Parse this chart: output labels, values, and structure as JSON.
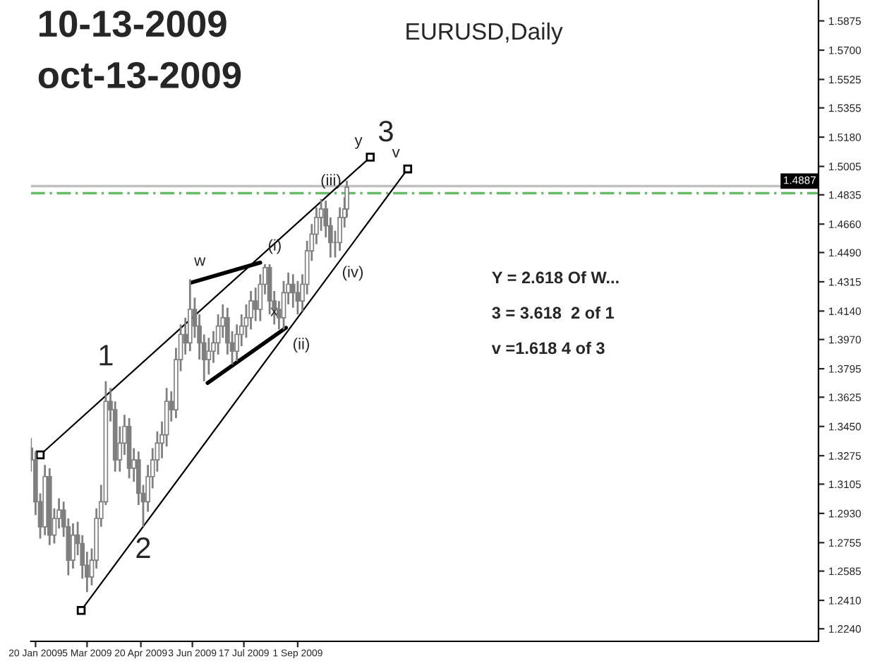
{
  "chart_data": {
    "type": "candlestick",
    "title": "10-13-2009",
    "subtitle": "oct-13-2009",
    "color": "#7f7f7f",
    "x": [
      "2009-01-16",
      "2009-01-20",
      "2009-01-24",
      "2009-01-28",
      "2009-02-01",
      "2009-02-05",
      "2009-02-09",
      "2009-02-13",
      "2009-02-17",
      "2009-02-21",
      "2009-02-25",
      "2009-03-01",
      "2009-03-05",
      "2009-03-09",
      "2009-03-13",
      "2009-03-17",
      "2009-03-21",
      "2009-03-25",
      "2009-03-29",
      "2009-04-02",
      "2009-04-06",
      "2009-04-10",
      "2009-04-14",
      "2009-04-18",
      "2009-04-22",
      "2009-04-26",
      "2009-04-30",
      "2009-05-04",
      "2009-05-08",
      "2009-05-12",
      "2009-05-16",
      "2009-05-20",
      "2009-05-24",
      "2009-05-28",
      "2009-06-01",
      "2009-06-05",
      "2009-06-09",
      "2009-06-13",
      "2009-06-17",
      "2009-06-21",
      "2009-06-25",
      "2009-06-29",
      "2009-07-03",
      "2009-07-07",
      "2009-07-11",
      "2009-07-15",
      "2009-07-19",
      "2009-07-23",
      "2009-07-27",
      "2009-07-31",
      "2009-08-04",
      "2009-08-08",
      "2009-08-12",
      "2009-08-16",
      "2009-08-20",
      "2009-08-24",
      "2009-08-28",
      "2009-09-01",
      "2009-09-05",
      "2009-09-09",
      "2009-09-13",
      "2009-09-17",
      "2009-09-21",
      "2009-09-25",
      "2009-09-29",
      "2009-10-03",
      "2009-10-07",
      "2009-10-11",
      "2009-10-13"
    ],
    "ohlc": [
      [
        1.332,
        1.338,
        1.318,
        1.325
      ],
      [
        1.325,
        1.33,
        1.292,
        1.3
      ],
      [
        1.3,
        1.305,
        1.278,
        1.285
      ],
      [
        1.285,
        1.322,
        1.28,
        1.315
      ],
      [
        1.315,
        1.32,
        1.274,
        1.28
      ],
      [
        1.28,
        1.296,
        1.275,
        1.29
      ],
      [
        1.29,
        1.302,
        1.284,
        1.295
      ],
      [
        1.295,
        1.3,
        1.279,
        1.285
      ],
      [
        1.285,
        1.29,
        1.256,
        1.265
      ],
      [
        1.265,
        1.287,
        1.26,
        1.28
      ],
      [
        1.28,
        1.288,
        1.268,
        1.275
      ],
      [
        1.275,
        1.28,
        1.254,
        1.262
      ],
      [
        1.262,
        1.27,
        1.246,
        1.255
      ],
      [
        1.255,
        1.272,
        1.25,
        1.265
      ],
      [
        1.265,
        1.296,
        1.26,
        1.29
      ],
      [
        1.29,
        1.31,
        1.285,
        1.3
      ],
      [
        1.3,
        1.372,
        1.298,
        1.36
      ],
      [
        1.36,
        1.368,
        1.348,
        1.355
      ],
      [
        1.355,
        1.36,
        1.318,
        1.325
      ],
      [
        1.325,
        1.345,
        1.318,
        1.335
      ],
      [
        1.335,
        1.352,
        1.328,
        1.345
      ],
      [
        1.345,
        1.35,
        1.314,
        1.32
      ],
      [
        1.32,
        1.332,
        1.312,
        1.325
      ],
      [
        1.325,
        1.33,
        1.298,
        1.305
      ],
      [
        1.305,
        1.31,
        1.285,
        1.3
      ],
      [
        1.3,
        1.322,
        1.294,
        1.315
      ],
      [
        1.315,
        1.332,
        1.308,
        1.325
      ],
      [
        1.325,
        1.342,
        1.318,
        1.335
      ],
      [
        1.335,
        1.348,
        1.326,
        1.34
      ],
      [
        1.34,
        1.368,
        1.333,
        1.36
      ],
      [
        1.36,
        1.366,
        1.348,
        1.355
      ],
      [
        1.355,
        1.392,
        1.35,
        1.385
      ],
      [
        1.385,
        1.406,
        1.378,
        1.4
      ],
      [
        1.4,
        1.41,
        1.388,
        1.395
      ],
      [
        1.395,
        1.433,
        1.39,
        1.415
      ],
      [
        1.415,
        1.422,
        1.398,
        1.405
      ],
      [
        1.405,
        1.412,
        1.385,
        1.395
      ],
      [
        1.395,
        1.4,
        1.372,
        1.385
      ],
      [
        1.385,
        1.398,
        1.376,
        1.39
      ],
      [
        1.39,
        1.402,
        1.383,
        1.395
      ],
      [
        1.395,
        1.412,
        1.388,
        1.405
      ],
      [
        1.405,
        1.418,
        1.398,
        1.41
      ],
      [
        1.41,
        1.416,
        1.388,
        1.395
      ],
      [
        1.395,
        1.402,
        1.382,
        1.39
      ],
      [
        1.39,
        1.406,
        1.384,
        1.4
      ],
      [
        1.4,
        1.412,
        1.393,
        1.405
      ],
      [
        1.405,
        1.418,
        1.398,
        1.41
      ],
      [
        1.41,
        1.426,
        1.403,
        1.42
      ],
      [
        1.42,
        1.428,
        1.408,
        1.415
      ],
      [
        1.415,
        1.436,
        1.408,
        1.43
      ],
      [
        1.43,
        1.442,
        1.424,
        1.44
      ],
      [
        1.44,
        1.442,
        1.412,
        1.42
      ],
      [
        1.42,
        1.426,
        1.406,
        1.415
      ],
      [
        1.415,
        1.42,
        1.403,
        1.41
      ],
      [
        1.41,
        1.432,
        1.403,
        1.425
      ],
      [
        1.425,
        1.437,
        1.418,
        1.43
      ],
      [
        1.43,
        1.436,
        1.416,
        1.425
      ],
      [
        1.425,
        1.432,
        1.412,
        1.42
      ],
      [
        1.42,
        1.436,
        1.414,
        1.43
      ],
      [
        1.43,
        1.456,
        1.424,
        1.45
      ],
      [
        1.45,
        1.466,
        1.444,
        1.46
      ],
      [
        1.46,
        1.476,
        1.454,
        1.47
      ],
      [
        1.47,
        1.481,
        1.462,
        1.475
      ],
      [
        1.475,
        1.48,
        1.458,
        1.465
      ],
      [
        1.465,
        1.47,
        1.446,
        1.455
      ],
      [
        1.455,
        1.462,
        1.446,
        1.455
      ],
      [
        1.455,
        1.476,
        1.45,
        1.47
      ],
      [
        1.47,
        1.482,
        1.464,
        1.475
      ],
      [
        1.475,
        1.492,
        1.47,
        1.488
      ]
    ],
    "series": [
      {
        "type": "line",
        "color": "#000000",
        "marker": "square",
        "x": [
          "2009-01-24",
          "2009-11-02"
        ],
        "values": [
          1.328,
          1.506
        ]
      },
      {
        "type": "line",
        "color": "#000000",
        "marker": "square",
        "x": [
          "2009-02-28",
          "2009-12-04"
        ],
        "values": [
          1.235,
          1.499
        ]
      },
      {
        "type": "line",
        "color": "#000000",
        "marker": "none",
        "x": [
          "2009-06-02",
          "2009-07-31"
        ],
        "values": [
          1.431,
          1.443
        ]
      },
      {
        "type": "line",
        "color": "#000000",
        "marker": "none",
        "x": [
          "2009-06-16",
          "2009-08-22"
        ],
        "values": [
          1.371,
          1.404
        ]
      }
    ],
    "ref_lines": [
      {
        "axis": "y",
        "value": 1.4887,
        "label": "1.4887",
        "color": "#c0c0c0",
        "line_style": "solid"
      },
      {
        "axis": "y",
        "value": 1.4845,
        "color": "#66bb66",
        "line_style": "dashed"
      }
    ],
    "annotations": [
      "EURUSD,Daily",
      "Y = 2.618 Of W...",
      "3 = 3.618  2 of 1",
      "v =1.618 4 of 3",
      {
        "text": "1",
        "x": "2009-03-21",
        "y": 1.372
      },
      {
        "text": "2",
        "x": "2009-04-22",
        "y": 1.285
      },
      {
        "text": "w",
        "x": "2009-06-01",
        "y": 1.433
      },
      {
        "text": "x",
        "x": "2009-08-22",
        "y": 1.404
      },
      {
        "text": "(i)",
        "x": "2009-08-04",
        "y": 1.442
      },
      {
        "text": "(ii)",
        "x": "2009-08-20",
        "y": 1.403
      },
      {
        "text": "(iii)",
        "x": "2009-09-21",
        "y": 1.481
      },
      {
        "text": "(iv)",
        "x": "2009-10-03",
        "y": 1.446
      },
      {
        "text": "y",
        "x": "2009-11-02",
        "y": 1.506
      },
      {
        "text": "3",
        "x": "2009-11-02",
        "y": 1.506
      },
      {
        "text": "v",
        "x": "2009-12-04",
        "y": 1.499
      }
    ],
    "xlim": [
      "2009-01-16",
      "2010-11-20"
    ],
    "xticks": [
      {
        "value": "2009-01-20",
        "label": "20 Jan 2009"
      },
      {
        "value": "2009-03-05",
        "label": "5 Mar 2009"
      },
      {
        "value": "2009-04-20",
        "label": "20 Apr 2009"
      },
      {
        "value": "2009-06-03",
        "label": "3 Jun 2009"
      },
      {
        "value": "2009-07-17",
        "label": "17 Jul 2009"
      },
      {
        "value": "2009-09-01",
        "label": "1 Sep 2009"
      }
    ],
    "ylim": [
      1.2165,
      1.6
    ],
    "yticks": [
      {
        "value": 1.5875,
        "label": "1.5875"
      },
      {
        "value": 1.57,
        "label": "1.5700"
      },
      {
        "value": 1.5525,
        "label": "1.5525"
      },
      {
        "value": 1.5355,
        "label": "1.5355"
      },
      {
        "value": 1.518,
        "label": "1.5180"
      },
      {
        "value": 1.5005,
        "label": "1.5005"
      },
      {
        "value": 1.4835,
        "label": "1.4835"
      },
      {
        "value": 1.466,
        "label": "1.4660"
      },
      {
        "value": 1.449,
        "label": "1.4490"
      },
      {
        "value": 1.4315,
        "label": "1.4315"
      },
      {
        "value": 1.414,
        "label": "1.4140"
      },
      {
        "value": 1.397,
        "label": "1.3970"
      },
      {
        "value": 1.3795,
        "label": "1.3795"
      },
      {
        "value": 1.3625,
        "label": "1.3625"
      },
      {
        "value": 1.345,
        "label": "1.3450"
      },
      {
        "value": 1.3275,
        "label": "1.3275"
      },
      {
        "value": 1.3105,
        "label": "1.3105"
      },
      {
        "value": 1.293,
        "label": "1.2930"
      },
      {
        "value": 1.2755,
        "label": "1.2755"
      },
      {
        "value": 1.2585,
        "label": "1.2585"
      },
      {
        "value": 1.241,
        "label": "1.2410"
      },
      {
        "value": 1.224,
        "label": "1.2240"
      }
    ]
  }
}
